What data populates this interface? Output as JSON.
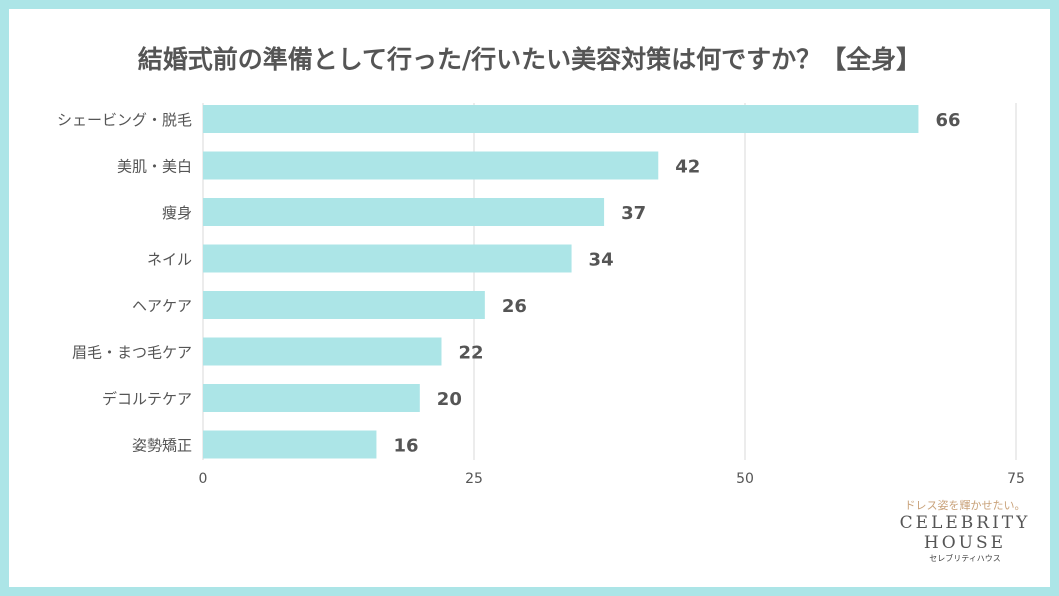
{
  "chart_data": {
    "type": "bar",
    "orientation": "horizontal",
    "title": "結婚式前の準備として行った/行いたい美容対策は何ですか？【全身】",
    "categories": [
      "シェービング・脱毛",
      "美肌・美白",
      "痩身",
      "ネイル",
      "ヘアケア",
      "眉毛・まつ毛ケア",
      "デコルテケア",
      "姿勢矯正"
    ],
    "values": [
      66,
      42,
      37,
      34,
      26,
      22,
      20,
      16
    ],
    "xlim": [
      0,
      75
    ],
    "xticks": [
      0,
      25,
      50,
      75
    ],
    "grid": true,
    "bar_color": "#ace5e7",
    "xlabel": "",
    "ylabel": ""
  },
  "logo": {
    "tagline": "ドレス姿を輝かせたい。",
    "line1": "CELEBRITY",
    "line2": "HOUSE",
    "kana": "セレブリティハウス"
  }
}
